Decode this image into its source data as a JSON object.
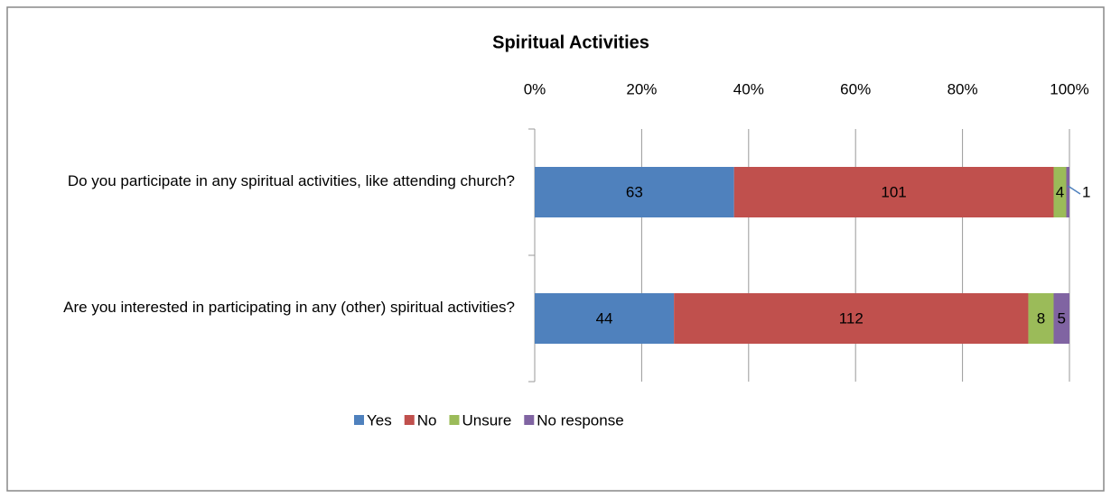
{
  "chart_data": {
    "type": "bar",
    "orientation": "horizontal",
    "stacking": "percent",
    "title": "Spiritual Activities",
    "categories": [
      "Do you participate in any spiritual activities, like attending church?",
      "Are you interested in participating in any (other) spiritual activities?"
    ],
    "series": [
      {
        "name": "Yes",
        "color": "#4f81bd",
        "values": [
          63,
          44
        ]
      },
      {
        "name": "No",
        "color": "#c0504d",
        "values": [
          101,
          112
        ]
      },
      {
        "name": "Unsure",
        "color": "#9bbb59",
        "values": [
          4,
          8
        ]
      },
      {
        "name": "No response",
        "color": "#8064a2",
        "values": [
          1,
          5
        ]
      }
    ],
    "xlim": [
      0,
      100
    ],
    "xticks": [
      {
        "value": 0,
        "label": "0%"
      },
      {
        "value": 20,
        "label": "20%"
      },
      {
        "value": 40,
        "label": "40%"
      },
      {
        "value": 60,
        "label": "60%"
      },
      {
        "value": 80,
        "label": "80%"
      },
      {
        "value": 100,
        "label": "100%"
      }
    ],
    "grid": true,
    "legend": "bottom"
  }
}
